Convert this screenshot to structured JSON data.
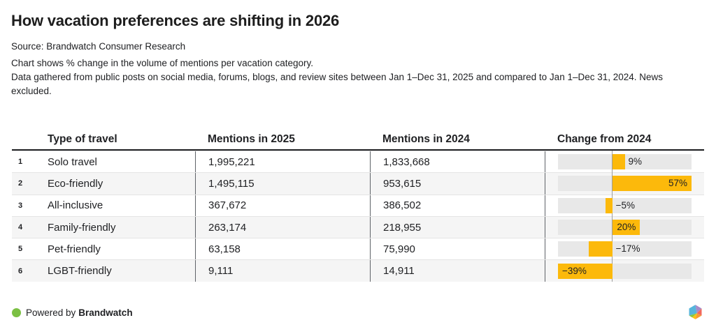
{
  "header": {
    "title": "How vacation preferences are shifting in 2026",
    "source": "Source: Brandwatch Consumer Research",
    "description_line1": "Chart shows % change in the volume of mentions per vacation category.",
    "description_line2": "Data gathered from public posts on social media, forums, blogs, and review sites between Jan 1–Dec 31, 2025 and compared to Jan 1–Dec 31, 2024. News excluded."
  },
  "table": {
    "columns": [
      "Type of travel",
      "Mentions in 2025",
      "Mentions in 2024",
      "Change from 2024"
    ],
    "rows": [
      {
        "rank": "1",
        "type": "Solo travel",
        "mentions_2025": "1,995,221",
        "mentions_2024": "1,833,668",
        "change_label": "9%"
      },
      {
        "rank": "2",
        "type": "Eco-friendly",
        "mentions_2025": "1,495,115",
        "mentions_2024": "953,615",
        "change_label": "57%"
      },
      {
        "rank": "3",
        "type": "All-inclusive",
        "mentions_2025": "367,672",
        "mentions_2024": "386,502",
        "change_label": "−5%"
      },
      {
        "rank": "4",
        "type": "Family-friendly",
        "mentions_2025": "263,174",
        "mentions_2024": "218,955",
        "change_label": "20%"
      },
      {
        "rank": "5",
        "type": "Pet-friendly",
        "mentions_2025": "63,158",
        "mentions_2024": "75,990",
        "change_label": "−17%"
      },
      {
        "rank": "6",
        "type": "LGBT-friendly",
        "mentions_2025": "9,111",
        "mentions_2024": "14,911",
        "change_label": "−39%"
      }
    ]
  },
  "chart_data": {
    "type": "bar",
    "orientation": "horizontal",
    "title": "Change from 2024",
    "categories": [
      "Solo travel",
      "Eco-friendly",
      "All-inclusive",
      "Family-friendly",
      "Pet-friendly",
      "LGBT-friendly"
    ],
    "values": [
      9,
      57,
      -5,
      20,
      -17,
      -39
    ],
    "unit": "%",
    "xlim": [
      -39,
      57
    ],
    "zero_baseline": true,
    "bar_color": "#fcb90b",
    "track_color": "#e8e8e8"
  },
  "footer": {
    "powered_by": "Powered by",
    "brand": "Brandwatch"
  },
  "colors": {
    "accent_yellow": "#fcb90b",
    "track_gray": "#e8e8e8",
    "alt_row": "#f5f5f5",
    "divider_dark": "#5f6368",
    "zero_line": "#9e9e9e",
    "text": "#202124",
    "brand_green": "#7bc043"
  }
}
